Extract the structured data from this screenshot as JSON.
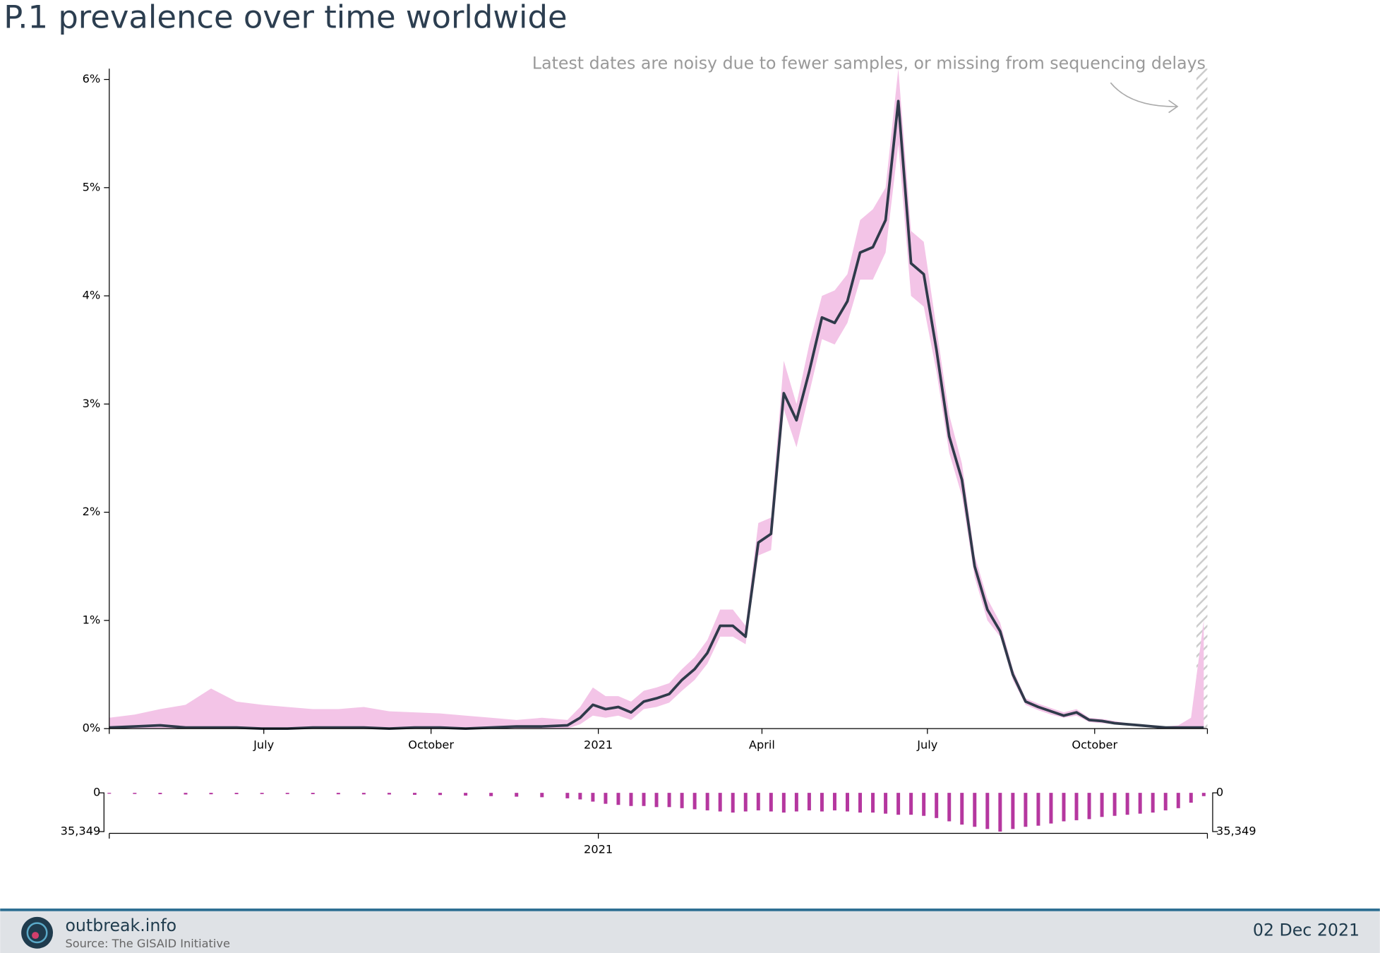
{
  "chart_data": [
    {
      "type": "line",
      "title": "P.1 prevalence over time worldwide",
      "annotation": "Latest dates are noisy due to fewer samples, or missing from sequencing delays",
      "noisy_from": "2021-11-26",
      "color": "#2f3a4a",
      "band_color": "#f3c4e7",
      "x": [
        "2020-04-07",
        "2020-04-21",
        "2020-05-05",
        "2020-05-19",
        "2020-06-02",
        "2020-06-16",
        "2020-06-30",
        "2020-07-14",
        "2020-07-28",
        "2020-08-11",
        "2020-08-25",
        "2020-09-08",
        "2020-09-22",
        "2020-10-06",
        "2020-10-20",
        "2020-11-03",
        "2020-11-17",
        "2020-12-01",
        "2020-12-15",
        "2020-12-22",
        "2020-12-29",
        "2021-01-05",
        "2021-01-12",
        "2021-01-19",
        "2021-01-26",
        "2021-02-02",
        "2021-02-09",
        "2021-02-16",
        "2021-02-23",
        "2021-03-02",
        "2021-03-09",
        "2021-03-16",
        "2021-03-23",
        "2021-03-30",
        "2021-04-06",
        "2021-04-13",
        "2021-04-20",
        "2021-04-27",
        "2021-05-04",
        "2021-05-11",
        "2021-05-18",
        "2021-05-25",
        "2021-06-01",
        "2021-06-08",
        "2021-06-15",
        "2021-06-22",
        "2021-06-29",
        "2021-07-06",
        "2021-07-13",
        "2021-07-20",
        "2021-07-27",
        "2021-08-03",
        "2021-08-10",
        "2021-08-17",
        "2021-08-24",
        "2021-08-31",
        "2021-09-07",
        "2021-09-14",
        "2021-09-21",
        "2021-09-28",
        "2021-10-05",
        "2021-10-12",
        "2021-10-19",
        "2021-10-26",
        "2021-11-02",
        "2021-11-09",
        "2021-11-16",
        "2021-11-23",
        "2021-11-30"
      ],
      "values": [
        0.01,
        0.02,
        0.03,
        0.01,
        0.01,
        0.01,
        0,
        0,
        0.01,
        0.01,
        0.01,
        0,
        0.01,
        0.01,
        0,
        0.01,
        0.02,
        0.02,
        0.03,
        0.1,
        0.22,
        0.18,
        0.2,
        0.15,
        0.25,
        0.28,
        0.32,
        0.45,
        0.55,
        0.7,
        0.95,
        0.95,
        0.85,
        1.72,
        1.8,
        3.1,
        2.85,
        3.3,
        3.8,
        3.75,
        3.95,
        4.4,
        4.45,
        4.7,
        5.8,
        4.3,
        4.2,
        3.5,
        2.7,
        2.3,
        1.5,
        1.1,
        0.9,
        0.5,
        0.25,
        0.2,
        0.16,
        0.12,
        0.15,
        0.08,
        0.07,
        0.05,
        0.04,
        0.03,
        0.02,
        0.01,
        0.01,
        0.01,
        0.01
      ],
      "ci_lower": [
        0,
        0,
        0,
        0,
        0,
        0,
        0,
        0,
        0,
        0,
        0,
        0,
        0,
        0,
        0,
        0,
        0,
        0,
        0,
        0.04,
        0.12,
        0.1,
        0.12,
        0.08,
        0.18,
        0.2,
        0.24,
        0.35,
        0.45,
        0.6,
        0.85,
        0.85,
        0.78,
        1.6,
        1.65,
        2.95,
        2.6,
        3.1,
        3.6,
        3.55,
        3.75,
        4.15,
        4.15,
        4.4,
        5.4,
        4.0,
        3.9,
        3.3,
        2.55,
        2.15,
        1.4,
        1.0,
        0.85,
        0.45,
        0.22,
        0.17,
        0.13,
        0.1,
        0.12,
        0.06,
        0.05,
        0.04,
        0.03,
        0.02,
        0.01,
        0,
        0,
        0,
        0
      ],
      "ci_upper": [
        0.1,
        0.13,
        0.18,
        0.22,
        0.37,
        0.25,
        0.22,
        0.2,
        0.18,
        0.18,
        0.2,
        0.16,
        0.15,
        0.14,
        0.12,
        0.1,
        0.08,
        0.1,
        0.08,
        0.2,
        0.38,
        0.3,
        0.3,
        0.25,
        0.35,
        0.38,
        0.42,
        0.55,
        0.66,
        0.82,
        1.1,
        1.1,
        0.95,
        1.9,
        1.95,
        3.4,
        3.0,
        3.55,
        4.0,
        4.05,
        4.2,
        4.7,
        4.8,
        5.0,
        6.1,
        4.6,
        4.5,
        3.7,
        2.9,
        2.45,
        1.6,
        1.2,
        0.98,
        0.55,
        0.28,
        0.23,
        0.19,
        0.15,
        0.18,
        0.1,
        0.09,
        0.07,
        0.05,
        0.04,
        0.03,
        0.02,
        0.03,
        0.1,
        1.0
      ],
      "xlim": [
        "2020-04-07",
        "2021-12-02"
      ],
      "xticks": [
        {
          "value": "2020-07-01",
          "label": "July"
        },
        {
          "value": "2020-10-01",
          "label": "October"
        },
        {
          "value": "2021-01-01",
          "label": "2021"
        },
        {
          "value": "2021-04-01",
          "label": "April"
        },
        {
          "value": "2021-07-01",
          "label": "July"
        },
        {
          "value": "2021-10-01",
          "label": "October"
        }
      ],
      "ylim": [
        0,
        6.1
      ],
      "yticks": [
        {
          "value": 0,
          "label": "0%"
        },
        {
          "value": 1,
          "label": "1%"
        },
        {
          "value": 2,
          "label": "2%"
        },
        {
          "value": 3,
          "label": "3%"
        },
        {
          "value": 4,
          "label": "4%"
        },
        {
          "value": 5,
          "label": "5%"
        },
        {
          "value": 6,
          "label": "6%"
        }
      ]
    },
    {
      "type": "bar",
      "color": "#b5379f",
      "x": [
        "2020-04-07",
        "2020-04-21",
        "2020-05-05",
        "2020-05-19",
        "2020-06-02",
        "2020-06-16",
        "2020-06-30",
        "2020-07-14",
        "2020-07-28",
        "2020-08-11",
        "2020-08-25",
        "2020-09-08",
        "2020-09-22",
        "2020-10-06",
        "2020-10-20",
        "2020-11-03",
        "2020-11-17",
        "2020-12-01",
        "2020-12-15",
        "2020-12-22",
        "2020-12-29",
        "2021-01-05",
        "2021-01-12",
        "2021-01-19",
        "2021-01-26",
        "2021-02-02",
        "2021-02-09",
        "2021-02-16",
        "2021-02-23",
        "2021-03-02",
        "2021-03-09",
        "2021-03-16",
        "2021-03-23",
        "2021-03-30",
        "2021-04-06",
        "2021-04-13",
        "2021-04-20",
        "2021-04-27",
        "2021-05-04",
        "2021-05-11",
        "2021-05-18",
        "2021-05-25",
        "2021-06-01",
        "2021-06-08",
        "2021-06-15",
        "2021-06-22",
        "2021-06-29",
        "2021-07-06",
        "2021-07-13",
        "2021-07-20",
        "2021-07-27",
        "2021-08-03",
        "2021-08-10",
        "2021-08-17",
        "2021-08-24",
        "2021-08-31",
        "2021-09-07",
        "2021-09-14",
        "2021-09-21",
        "2021-09-28",
        "2021-10-05",
        "2021-10-12",
        "2021-10-19",
        "2021-10-26",
        "2021-11-02",
        "2021-11-09",
        "2021-11-16",
        "2021-11-23",
        "2021-11-30"
      ],
      "values": [
        800,
        1000,
        1200,
        1500,
        1300,
        1200,
        1100,
        1100,
        1200,
        1300,
        1400,
        1500,
        1800,
        2000,
        2500,
        3000,
        3500,
        4000,
        5000,
        6000,
        8000,
        10000,
        11000,
        12000,
        12000,
        13000,
        13000,
        14000,
        15000,
        16000,
        17000,
        18000,
        17000,
        16000,
        17000,
        18000,
        17000,
        16000,
        17000,
        16000,
        17000,
        18000,
        18000,
        19000,
        20000,
        20000,
        21000,
        23000,
        26000,
        29000,
        31000,
        33000,
        35349,
        33000,
        31000,
        30000,
        28000,
        26000,
        25000,
        24000,
        22000,
        21000,
        20000,
        19000,
        18000,
        16000,
        14000,
        9000,
        3000
      ],
      "xlim": [
        "2020-04-07",
        "2021-12-02"
      ],
      "xticks": [
        {
          "value": "2021-01-01",
          "label": "2021"
        }
      ],
      "ylim": [
        0,
        35349
      ],
      "yticks": [
        0,
        {
          "value": 35349,
          "label": "35,349"
        }
      ]
    }
  ],
  "footer": {
    "site": "outbreak.info",
    "source": "Source: The GISAID Initiative",
    "date": "02 Dec 2021"
  }
}
